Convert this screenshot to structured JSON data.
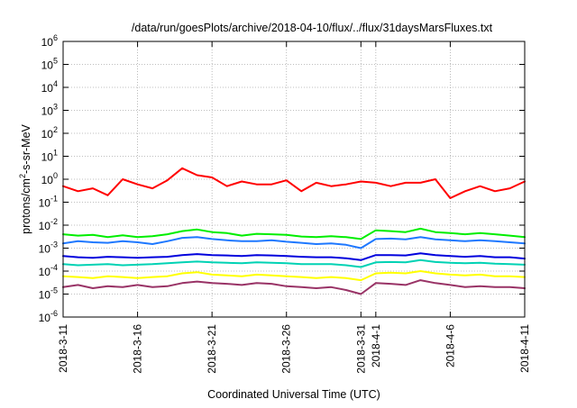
{
  "chart_data": {
    "type": "line",
    "title": "/data/run/goesPlots/archive/2018-04-10/flux/../flux/31daysMarsFluxes.txt",
    "xlabel": "Coordinated Universal Time (UTC)",
    "ylabel": "protons/cm²-s-sr-MeV",
    "ylabel_parts": {
      "pre": "protons/cm",
      "sup": "2",
      "post": "-s-sr-MeV"
    },
    "x_range": [
      "2018-03-11",
      "2018-04-11"
    ],
    "y_scale": "log",
    "ylim": [
      1e-06,
      1000000.0
    ],
    "grid": true,
    "legend": "none",
    "x_ticks": [
      {
        "day": 0,
        "label": "2018-3-11"
      },
      {
        "day": 5,
        "label": "2018-3-16"
      },
      {
        "day": 10,
        "label": "2018-3-21"
      },
      {
        "day": 15,
        "label": "2018-3-26"
      },
      {
        "day": 20,
        "label": "2018-3-31"
      },
      {
        "day": 21,
        "label": "2018-4-1"
      },
      {
        "day": 26,
        "label": "2018-4-6"
      },
      {
        "day": 31,
        "label": "2018-4-11"
      }
    ],
    "y_ticks": [
      {
        "exp": -6,
        "base": "10",
        "sup": "-6"
      },
      {
        "exp": -5,
        "base": "10",
        "sup": "-5"
      },
      {
        "exp": -4,
        "base": "10",
        "sup": "-4"
      },
      {
        "exp": -3,
        "base": "10",
        "sup": "-3"
      },
      {
        "exp": -2,
        "base": "10",
        "sup": "-2"
      },
      {
        "exp": -1,
        "base": "10",
        "sup": "-1"
      },
      {
        "exp": 0,
        "base": "10",
        "sup": "0"
      },
      {
        "exp": 1,
        "base": "10",
        "sup": "1"
      },
      {
        "exp": 2,
        "base": "10",
        "sup": "2"
      },
      {
        "exp": 3,
        "base": "10",
        "sup": "3"
      },
      {
        "exp": 4,
        "base": "10",
        "sup": "4"
      },
      {
        "exp": 5,
        "base": "10",
        "sup": "5"
      },
      {
        "exp": 6,
        "base": "10",
        "sup": "6"
      }
    ],
    "x": [
      "2018-03-11",
      "2018-03-12",
      "2018-03-13",
      "2018-03-14",
      "2018-03-15",
      "2018-03-16",
      "2018-03-17",
      "2018-03-18",
      "2018-03-19",
      "2018-03-20",
      "2018-03-21",
      "2018-03-22",
      "2018-03-23",
      "2018-03-24",
      "2018-03-25",
      "2018-03-26",
      "2018-03-27",
      "2018-03-28",
      "2018-03-29",
      "2018-03-30",
      "2018-03-31",
      "2018-04-01",
      "2018-04-02",
      "2018-04-03",
      "2018-04-04",
      "2018-04-05",
      "2018-04-06",
      "2018-04-07",
      "2018-04-08",
      "2018-04-09",
      "2018-04-10",
      "2018-04-11"
    ],
    "series": [
      {
        "color": "#ff0000",
        "values": [
          0.5,
          0.3,
          0.4,
          0.2,
          1.0,
          0.6,
          0.4,
          0.9,
          3.0,
          1.5,
          1.2,
          0.5,
          0.8,
          0.6,
          0.6,
          0.9,
          0.3,
          0.7,
          0.5,
          0.6,
          0.8,
          0.7,
          0.5,
          0.7,
          0.7,
          1.0,
          0.15,
          0.3,
          0.5,
          0.3,
          0.4,
          0.8
        ]
      },
      {
        "color": "#00ee00",
        "values": [
          0.004,
          0.0035,
          0.0038,
          0.003,
          0.0036,
          0.003,
          0.0033,
          0.004,
          0.0055,
          0.0065,
          0.005,
          0.0045,
          0.0035,
          0.0042,
          0.004,
          0.0038,
          0.0032,
          0.003,
          0.0033,
          0.003,
          0.0025,
          0.006,
          0.0055,
          0.005,
          0.007,
          0.005,
          0.0045,
          0.004,
          0.0045,
          0.004,
          0.0035,
          0.003
        ]
      },
      {
        "color": "#1e78ff",
        "values": [
          0.0016,
          0.002,
          0.0018,
          0.0017,
          0.002,
          0.0018,
          0.0015,
          0.002,
          0.0028,
          0.003,
          0.0025,
          0.0022,
          0.002,
          0.002,
          0.0022,
          0.0019,
          0.0017,
          0.0015,
          0.0016,
          0.0014,
          0.001,
          0.0025,
          0.0026,
          0.0024,
          0.003,
          0.0024,
          0.0022,
          0.002,
          0.0022,
          0.002,
          0.0018,
          0.0016
        ]
      },
      {
        "color": "#0000dd",
        "values": [
          0.00045,
          0.0004,
          0.00038,
          0.00042,
          0.0004,
          0.00038,
          0.0004,
          0.00042,
          0.0005,
          0.00055,
          0.0005,
          0.00048,
          0.00045,
          0.0005,
          0.00048,
          0.00045,
          0.00042,
          0.0004,
          0.0004,
          0.00036,
          0.0003,
          0.0005,
          0.0005,
          0.00048,
          0.0006,
          0.0005,
          0.00045,
          0.00042,
          0.00045,
          0.0004,
          0.0004,
          0.00035
        ]
      },
      {
        "color": "#00d2b4",
        "values": [
          0.0002,
          0.00018,
          0.00019,
          0.0002,
          0.00018,
          0.00019,
          0.0002,
          0.00022,
          0.00024,
          0.00026,
          0.00024,
          0.00023,
          0.00022,
          0.00024,
          0.00023,
          0.00022,
          0.0002,
          0.0002,
          0.0002,
          0.00018,
          0.00015,
          0.00024,
          0.00025,
          0.00024,
          0.0003,
          0.00025,
          0.00023,
          0.00022,
          0.00023,
          0.00021,
          0.0002,
          0.00019
        ]
      },
      {
        "color": "#ffff00",
        "values": [
          6e-05,
          5.5e-05,
          5e-05,
          6e-05,
          5.5e-05,
          5e-05,
          5.5e-05,
          6e-05,
          8e-05,
          9e-05,
          7e-05,
          6.5e-05,
          6e-05,
          7e-05,
          6.5e-05,
          6e-05,
          5.5e-05,
          5e-05,
          5.5e-05,
          5e-05,
          4e-05,
          8e-05,
          8.5e-05,
          8e-05,
          0.0001,
          8e-05,
          7e-05,
          6.5e-05,
          7e-05,
          6e-05,
          6e-05,
          5.5e-05
        ]
      },
      {
        "color": "#993366",
        "values": [
          2e-05,
          2.5e-05,
          1.8e-05,
          2.2e-05,
          2e-05,
          2.5e-05,
          2e-05,
          2.2e-05,
          3e-05,
          3.5e-05,
          3e-05,
          2.8e-05,
          2.5e-05,
          3e-05,
          2.8e-05,
          2.2e-05,
          2e-05,
          1.8e-05,
          2e-05,
          1.5e-05,
          1e-05,
          3e-05,
          2.8e-05,
          2.5e-05,
          4e-05,
          3e-05,
          2.5e-05,
          2e-05,
          2.2e-05,
          2e-05,
          2e-05,
          1.8e-05
        ]
      }
    ]
  }
}
